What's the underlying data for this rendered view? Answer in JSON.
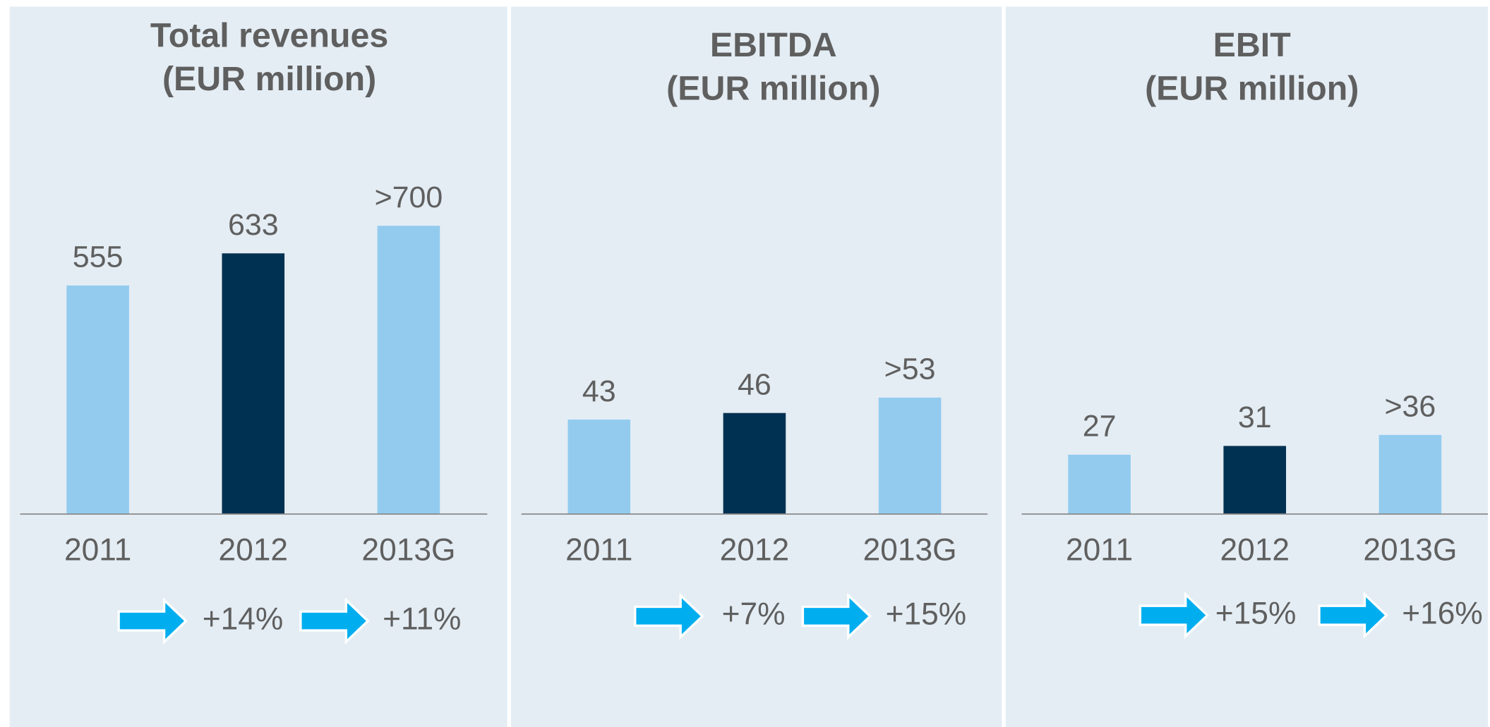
{
  "chart_data": [
    {
      "type": "bar",
      "title": [
        "Total revenues",
        "(EUR million)"
      ],
      "categories": [
        "2011",
        "2012",
        "2013G"
      ],
      "values": [
        555,
        633,
        700
      ],
      "value_labels": [
        "555",
        "633",
        ">700"
      ],
      "colors": [
        "#93cbef",
        "#003152",
        "#93cbef"
      ],
      "ylim": [
        0,
        800
      ],
      "growth": [
        "+14%",
        "+11%"
      ]
    },
    {
      "type": "bar",
      "title": [
        "EBITDA",
        "(EUR million)"
      ],
      "categories": [
        "2011",
        "2012",
        "2013G"
      ],
      "values": [
        43,
        46,
        53
      ],
      "value_labels": [
        "43",
        "46",
        ">53"
      ],
      "colors": [
        "#93cbef",
        "#003152",
        "#93cbef"
      ],
      "ylim": [
        0,
        150
      ],
      "growth": [
        "+7%",
        "+15%"
      ]
    },
    {
      "type": "bar",
      "title": [
        "EBIT",
        "(EUR million)"
      ],
      "categories": [
        "2011",
        "2012",
        "2013G"
      ],
      "values": [
        27,
        31,
        36
      ],
      "value_labels": [
        "27",
        "31",
        ">36"
      ],
      "colors": [
        "#93cbef",
        "#003152",
        "#93cbef"
      ],
      "ylim": [
        0,
        150
      ],
      "growth": [
        "+15%",
        "+16%"
      ]
    }
  ]
}
